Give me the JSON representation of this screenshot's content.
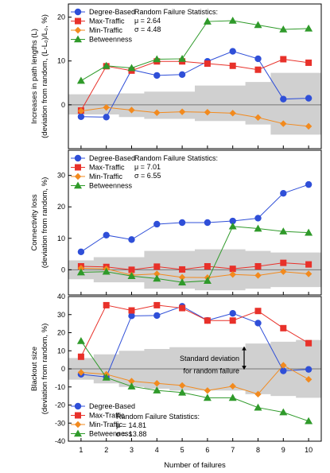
{
  "colors": {
    "Degree-Based": "#2f4fd8",
    "Max-Traffic": "#e8312a",
    "Min-Traffic": "#f28a1e",
    "Betweenness": "#2f9a2a",
    "band": "#d0d0d0"
  },
  "series_names": [
    "Degree-Based",
    "Max-Traffic",
    "Min-Traffic",
    "Betweenness"
  ],
  "xlabel": "Number of failures",
  "chart_data": [
    {
      "type": "line",
      "ylabel_line1": "Increases in path lengths (L)",
      "ylabel_line2": "(deviation from random, (L-L₀)/L₀, %)",
      "ylim": [
        -10,
        23
      ],
      "yticks": [
        0,
        10,
        20
      ],
      "x": [
        1,
        2,
        3,
        4,
        5,
        6,
        7,
        8,
        9,
        10
      ],
      "series": [
        {
          "name": "Degree-Based",
          "values": [
            -2.7,
            -2.8,
            8.0,
            6.7,
            6.9,
            9.9,
            12.2,
            10.5,
            1.3,
            1.5
          ]
        },
        {
          "name": "Max-Traffic",
          "values": [
            -1.3,
            8.8,
            7.8,
            9.9,
            9.9,
            9.4,
            8.9,
            8.0,
            10.4,
            9.6
          ]
        },
        {
          "name": "Min-Traffic",
          "values": [
            -1.4,
            -0.6,
            -1.2,
            -1.8,
            -1.6,
            -1.7,
            -1.9,
            -2.9,
            -4.3,
            -4.9
          ]
        },
        {
          "name": "Betweenness",
          "values": [
            5.5,
            8.9,
            8.4,
            10.4,
            10.5,
            19.0,
            19.2,
            18.2,
            17.2,
            17.4
          ]
        }
      ],
      "band": {
        "lower": [
          -2.2,
          -2.2,
          -2.8,
          -3.2,
          -3.2,
          -3.7,
          -3.7,
          -4.5,
          -6.8,
          -6.8
        ],
        "upper": [
          2.4,
          2.4,
          2.6,
          3.0,
          3.0,
          4.4,
          4.4,
          5.2,
          7.3,
          7.3
        ]
      },
      "legend_position": "top-left",
      "stats": {
        "title": "Random Failure Statistics:",
        "mu": "μ = 2.64",
        "sigma": "σ = 4.48"
      }
    },
    {
      "type": "line",
      "ylabel_line1": "Connectivity loss",
      "ylabel_line2": "(deviation from random, %)",
      "ylim": [
        -8,
        38
      ],
      "yticks": [
        0,
        10,
        20,
        30
      ],
      "x": [
        1,
        2,
        3,
        4,
        5,
        6,
        7,
        8,
        9,
        10
      ],
      "series": [
        {
          "name": "Degree-Based",
          "values": [
            5.7,
            11.0,
            9.6,
            14.5,
            15.0,
            15.0,
            15.5,
            16.4,
            24.3,
            27.1
          ]
        },
        {
          "name": "Max-Traffic",
          "values": [
            1.1,
            0.9,
            0.0,
            1.0,
            0.1,
            1.1,
            0.3,
            1.1,
            2.2,
            1.7
          ]
        },
        {
          "name": "Min-Traffic",
          "values": [
            0.5,
            0.3,
            -1.7,
            -1.3,
            -2.4,
            -2.5,
            -1.5,
            -1.8,
            -0.6,
            -1.3
          ]
        },
        {
          "name": "Betweenness",
          "values": [
            -0.8,
            -0.6,
            -2.0,
            -2.8,
            -4.0,
            -3.5,
            13.8,
            13.1,
            12.2,
            11.8
          ]
        }
      ],
      "band": {
        "lower": [
          -3.0,
          -4.0,
          -4.0,
          -6.0,
          -6.0,
          -6.5,
          -6.5,
          -6.0,
          -5.5,
          -5.5
        ],
        "upper": [
          3.0,
          4.0,
          4.0,
          6.0,
          6.0,
          6.5,
          6.5,
          6.0,
          5.5,
          5.5
        ]
      },
      "legend_position": "top-left",
      "stats": {
        "title": "Random Failure Statistics:",
        "mu": "μ = 7.01",
        "sigma": "σ = 6.55"
      }
    },
    {
      "type": "line",
      "ylabel_line1": "Blackout size",
      "ylabel_line2": "(deviation from random, %)",
      "ylim": [
        -40,
        40
      ],
      "yticks": [
        -40,
        -30,
        -20,
        -10,
        0,
        10,
        20,
        30,
        40
      ],
      "x": [
        1,
        2,
        3,
        4,
        5,
        6,
        7,
        8,
        9,
        10
      ],
      "series": [
        {
          "name": "Degree-Based",
          "values": [
            -3.0,
            -4.5,
            29.3,
            29.5,
            34.6,
            26.8,
            30.7,
            25.3,
            -1.1,
            -0.3
          ]
        },
        {
          "name": "Max-Traffic",
          "values": [
            6.7,
            35.2,
            32.3,
            35.2,
            33.6,
            26.7,
            26.7,
            32.0,
            22.5,
            14.2
          ]
        },
        {
          "name": "Min-Traffic",
          "values": [
            -2.0,
            -3.0,
            -6.8,
            -8.0,
            -9.2,
            -12.0,
            -9.6,
            -14.0,
            2.0,
            -5.8
          ]
        },
        {
          "name": "Betweenness",
          "values": [
            15.4,
            -4.8,
            -9.7,
            -11.9,
            -13.1,
            -16.0,
            -16.0,
            -21.4,
            -24.0,
            -28.9
          ]
        }
      ],
      "band": {
        "lower": [
          -6.0,
          -8.0,
          -10.0,
          -11.0,
          -12.0,
          -12.0,
          -12.0,
          -14.0,
          -15.0,
          -16.0
        ],
        "upper": [
          6.0,
          8.0,
          10.0,
          11.0,
          12.0,
          12.0,
          12.0,
          14.0,
          15.0,
          16.0
        ]
      },
      "legend_position": "bottom-left",
      "stats": {
        "title": "Random Failure Statistics:",
        "mu": "μ = 14.81",
        "sigma": "σ = 13.88"
      },
      "annotation": {
        "line1": "Standard deviation",
        "line2": "for random failure"
      }
    }
  ]
}
